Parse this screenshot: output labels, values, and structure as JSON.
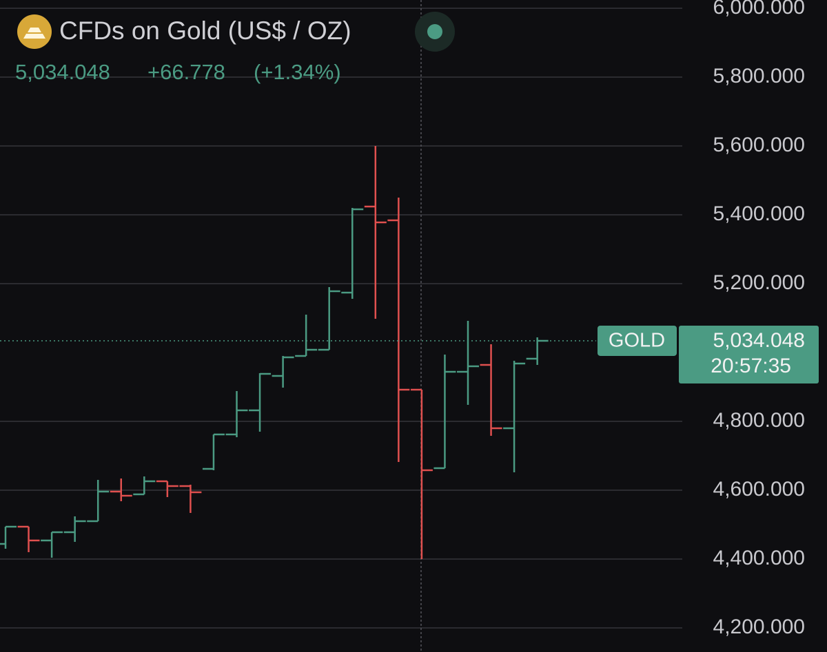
{
  "chart_data": {
    "type": "ohlc",
    "title": "CFDs on Gold (US$ / OZ)",
    "open": [
      4444,
      4494,
      4454,
      4478,
      4510,
      4596,
      4588,
      4626,
      4612,
      4662,
      4762,
      4832,
      4932,
      4990,
      5008,
      5174,
      5424,
      5384,
      4892,
      4664,
      4944,
      4964,
      4780,
      4982
    ],
    "high": [
      4494,
      4494,
      4478,
      4524,
      4630,
      4634,
      4640,
      4626,
      4616,
      4762,
      4888,
      4940,
      4990,
      5110,
      5190,
      5420,
      5600,
      5450,
      4892,
      4994,
      5092,
      5024,
      4976,
      5044
    ],
    "low": [
      4430,
      4420,
      4404,
      4450,
      4510,
      4568,
      4588,
      4580,
      4534,
      4658,
      4754,
      4770,
      4898,
      4990,
      5008,
      5156,
      5098,
      4682,
      4400,
      4664,
      4848,
      4758,
      4652,
      4964
    ],
    "close": [
      4494,
      4454,
      4478,
      4510,
      4596,
      4584,
      4626,
      4612,
      4594,
      4762,
      4832,
      4938,
      4986,
      5008,
      5178,
      5416,
      5378,
      4892,
      4658,
      4944,
      4960,
      4780,
      4968,
      5034.048
    ],
    "colors": {
      "up": "#4b9b83",
      "down": "#e0504f"
    },
    "ylim": [
      4130,
      6024
    ],
    "yticks": [
      {
        "value": 4200,
        "label": "4,200.000"
      },
      {
        "value": 4400,
        "label": "4,400.000"
      },
      {
        "value": 4600,
        "label": "4,600.000"
      },
      {
        "value": 4800,
        "label": "4,800.000"
      },
      {
        "value": 5200,
        "label": "5,200.000"
      },
      {
        "value": 5400,
        "label": "5,400.000"
      },
      {
        "value": 5600,
        "label": "5,600.000"
      },
      {
        "value": 5800,
        "label": "5,800.000"
      },
      {
        "value": 6000,
        "label": "6,000.000"
      }
    ],
    "grid": true,
    "price_line": {
      "value": 5034.048,
      "label": "5,034.048"
    },
    "change": "+66.778",
    "change_percent": "(+1.34%)",
    "symbol": "GOLD",
    "countdown": "20:57:35"
  }
}
